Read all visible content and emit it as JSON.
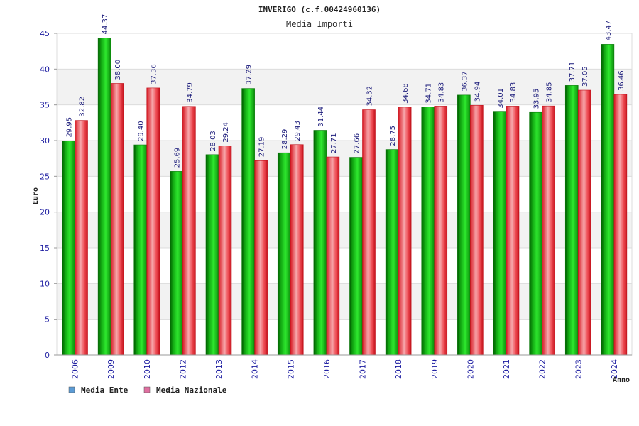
{
  "chart_data": {
    "type": "bar",
    "title": "INVERIGO (c.f.00424960136)",
    "subtitle": "Media Importi",
    "xlabel": "Anno",
    "ylabel": "Euro",
    "ylim": [
      0,
      45
    ],
    "yticks": [
      0,
      5,
      10,
      15,
      20,
      25,
      30,
      35,
      40,
      45
    ],
    "grid": true,
    "legend_position": "bottom-left",
    "categories": [
      "2006",
      "2009",
      "2010",
      "2012",
      "2013",
      "2014",
      "2015",
      "2016",
      "2017",
      "2018",
      "2019",
      "2020",
      "2021",
      "2022",
      "2023",
      "2024"
    ],
    "series": [
      {
        "name": "Media Ente",
        "legend_color": "#5b9bd5",
        "color": "#1fbf1f",
        "values": [
          29.95,
          44.37,
          29.4,
          25.69,
          28.03,
          37.29,
          28.29,
          31.44,
          27.66,
          28.75,
          34.71,
          36.37,
          34.01,
          33.95,
          37.71,
          43.47
        ],
        "labels": [
          "29.95",
          "44.37",
          "29.40",
          "25.69",
          "28.03",
          "37.29",
          "28.29",
          "31.44",
          "27.66",
          "28.75",
          "34.71",
          "36.37",
          "34.01",
          "33.95",
          "37.71",
          "43.47"
        ]
      },
      {
        "name": "Media Nazionale",
        "legend_color": "#e06fa0",
        "color": "#e8202a",
        "values": [
          32.82,
          38.0,
          37.36,
          34.79,
          29.24,
          27.19,
          29.43,
          27.71,
          34.32,
          34.68,
          34.83,
          34.94,
          34.83,
          34.85,
          37.05,
          36.46
        ],
        "labels": [
          "32.82",
          "38.00",
          "37.36",
          "34.79",
          "29.24",
          "27.19",
          "29.43",
          "27.71",
          "34.32",
          "34.68",
          "34.83",
          "34.94",
          "34.83",
          "34.85",
          "37.05",
          "36.46"
        ]
      }
    ]
  }
}
